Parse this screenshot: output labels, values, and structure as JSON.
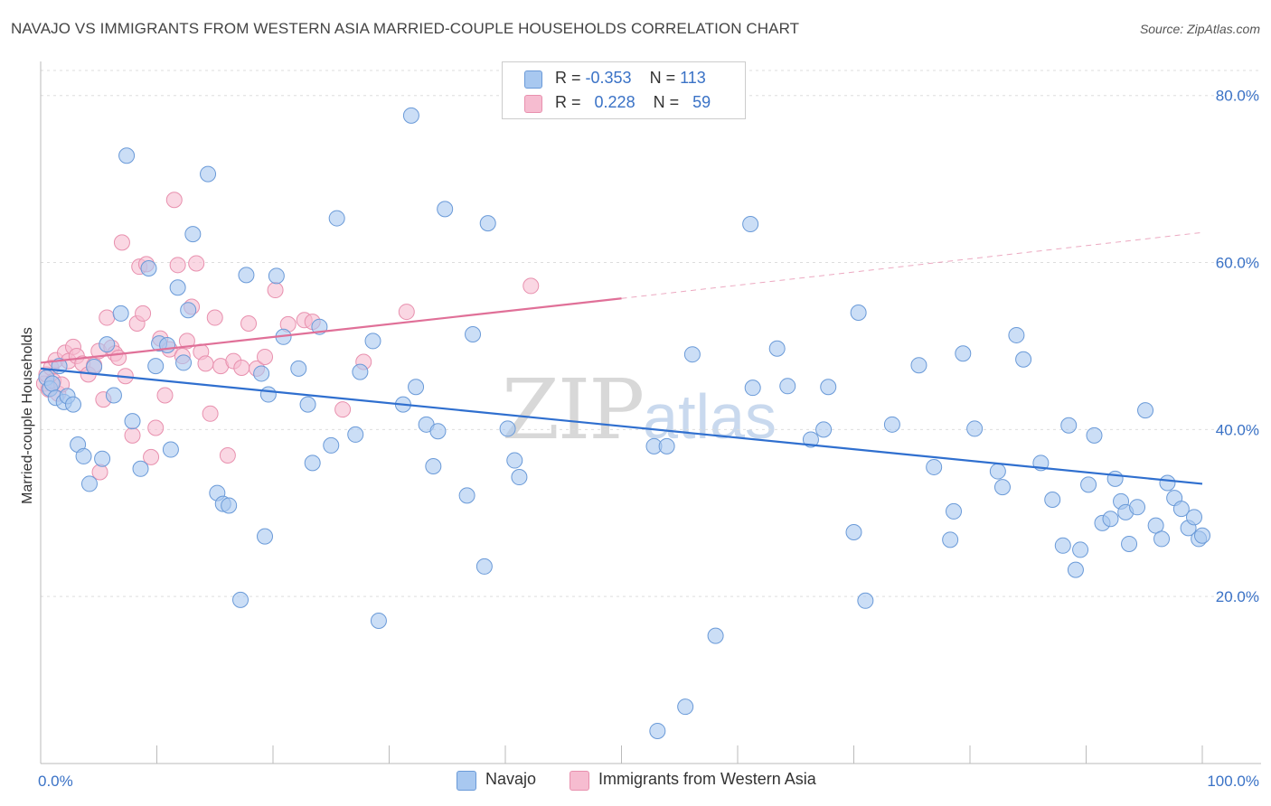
{
  "title": "NAVAJO VS IMMIGRANTS FROM WESTERN ASIA MARRIED-COUPLE HOUSEHOLDS CORRELATION CHART",
  "source": "Source: ZipAtlas.com",
  "watermark": {
    "zip": "ZIP",
    "atlas": "atlas"
  },
  "colors": {
    "navajo_fill": "#a8c8f0",
    "navajo_stroke": "#6a9ad8",
    "navajo_line": "#2f6fcf",
    "imm_fill": "#f6bcd0",
    "imm_stroke": "#e890ae",
    "imm_line": "#e07098",
    "grid": "#dddddd",
    "tick_label": "#3a72c6"
  },
  "legend": {
    "navajo": {
      "r_label": "R = ",
      "r_value": "-0.353",
      "n_label": "N = ",
      "n_value": "113"
    },
    "imm": {
      "r_label": "R = ",
      "r_value": "0.228",
      "n_label": "N = ",
      "n_value": "59"
    }
  },
  "bottom_legend": {
    "navajo": "Navajo",
    "imm": "Immigrants from Western Asia"
  },
  "chart_data": {
    "type": "scatter",
    "title": "NAVAJO VS IMMIGRANTS FROM WESTERN ASIA MARRIED-COUPLE HOUSEHOLDS CORRELATION CHART",
    "xlabel": "",
    "ylabel": "Married-couple Households",
    "xlim": [
      0,
      100
    ],
    "ylim": [
      0,
      83
    ],
    "x_tick_labels": [
      "0.0%",
      "100.0%"
    ],
    "y_ticks": [
      20,
      40,
      60,
      80
    ],
    "y_tick_labels": [
      "20.0%",
      "40.0%",
      "60.0%",
      "80.0%"
    ],
    "grid": true,
    "legend_position": "top-center",
    "series": [
      {
        "name": "Navajo",
        "trend": {
          "x": [
            0,
            100
          ],
          "y": [
            47.3,
            33.5
          ],
          "dashed_from": null
        },
        "points": [
          [
            0.5,
            46.2
          ],
          [
            0.8,
            44.9
          ],
          [
            1.0,
            45.5
          ],
          [
            1.3,
            43.8
          ],
          [
            1.6,
            47.6
          ],
          [
            2.0,
            43.3
          ],
          [
            2.3,
            44.0
          ],
          [
            2.8,
            43.0
          ],
          [
            3.2,
            38.2
          ],
          [
            3.7,
            36.8
          ],
          [
            4.2,
            33.5
          ],
          [
            4.6,
            47.5
          ],
          [
            5.3,
            36.5
          ],
          [
            5.7,
            50.2
          ],
          [
            6.3,
            44.1
          ],
          [
            6.9,
            53.9
          ],
          [
            7.4,
            72.8
          ],
          [
            7.9,
            41.0
          ],
          [
            8.6,
            35.3
          ],
          [
            9.3,
            59.3
          ],
          [
            9.9,
            47.6
          ],
          [
            10.2,
            50.3
          ],
          [
            10.9,
            50.1
          ],
          [
            11.2,
            37.6
          ],
          [
            11.8,
            57.0
          ],
          [
            12.3,
            48.0
          ],
          [
            12.7,
            54.3
          ],
          [
            13.1,
            63.4
          ],
          [
            14.4,
            70.6
          ],
          [
            15.2,
            32.4
          ],
          [
            15.7,
            31.1
          ],
          [
            16.2,
            30.9
          ],
          [
            17.2,
            19.6
          ],
          [
            17.7,
            58.5
          ],
          [
            19.0,
            46.7
          ],
          [
            19.3,
            27.2
          ],
          [
            19.6,
            44.2
          ],
          [
            20.3,
            58.4
          ],
          [
            20.9,
            51.1
          ],
          [
            22.2,
            47.3
          ],
          [
            23.0,
            43.0
          ],
          [
            23.4,
            36.0
          ],
          [
            24.0,
            52.3
          ],
          [
            25.0,
            38.1
          ],
          [
            25.5,
            65.3
          ],
          [
            27.1,
            39.4
          ],
          [
            27.5,
            46.9
          ],
          [
            28.6,
            50.6
          ],
          [
            29.1,
            17.1
          ],
          [
            31.2,
            43.0
          ],
          [
            31.9,
            77.6
          ],
          [
            32.3,
            45.1
          ],
          [
            33.2,
            40.6
          ],
          [
            33.8,
            35.6
          ],
          [
            34.2,
            39.8
          ],
          [
            34.8,
            66.4
          ],
          [
            36.7,
            32.1
          ],
          [
            37.2,
            51.4
          ],
          [
            38.2,
            23.6
          ],
          [
            38.5,
            64.7
          ],
          [
            40.2,
            40.1
          ],
          [
            40.8,
            36.3
          ],
          [
            41.2,
            34.3
          ],
          [
            53.1,
            3.9
          ],
          [
            55.5,
            6.8
          ],
          [
            52.8,
            38.0
          ],
          [
            53.9,
            38.0
          ],
          [
            56.1,
            49.0
          ],
          [
            58.1,
            15.3
          ],
          [
            61.1,
            64.6
          ],
          [
            61.3,
            45.0
          ],
          [
            63.4,
            49.7
          ],
          [
            64.3,
            45.2
          ],
          [
            66.3,
            38.8
          ],
          [
            67.4,
            40.0
          ],
          [
            67.8,
            45.1
          ],
          [
            70.0,
            27.7
          ],
          [
            70.4,
            54.0
          ],
          [
            71.0,
            19.5
          ],
          [
            73.3,
            40.6
          ],
          [
            75.6,
            47.7
          ],
          [
            76.9,
            35.5
          ],
          [
            78.3,
            26.8
          ],
          [
            78.6,
            30.2
          ],
          [
            79.4,
            49.1
          ],
          [
            80.4,
            40.1
          ],
          [
            82.4,
            35.0
          ],
          [
            82.8,
            33.1
          ],
          [
            84.0,
            51.3
          ],
          [
            84.6,
            48.4
          ],
          [
            86.1,
            36.0
          ],
          [
            87.1,
            31.6
          ],
          [
            88.0,
            26.1
          ],
          [
            88.5,
            40.5
          ],
          [
            89.1,
            23.2
          ],
          [
            89.5,
            25.6
          ],
          [
            90.2,
            33.4
          ],
          [
            90.7,
            39.3
          ],
          [
            91.4,
            28.8
          ],
          [
            92.1,
            29.3
          ],
          [
            92.5,
            34.1
          ],
          [
            93.0,
            31.4
          ],
          [
            93.4,
            30.1
          ],
          [
            93.7,
            26.3
          ],
          [
            94.4,
            30.7
          ],
          [
            95.1,
            42.3
          ],
          [
            96.0,
            28.5
          ],
          [
            96.5,
            26.9
          ],
          [
            97.0,
            33.6
          ],
          [
            97.6,
            31.8
          ],
          [
            98.2,
            30.5
          ],
          [
            98.8,
            28.2
          ],
          [
            99.3,
            29.5
          ],
          [
            99.7,
            26.9
          ],
          [
            100.0,
            27.3
          ]
        ]
      },
      {
        "name": "Immigrants from Western Asia",
        "trend": {
          "x": [
            0,
            50,
            100
          ],
          "y": [
            48.0,
            55.7,
            63.6
          ],
          "dashed_from": 50
        },
        "points": [
          [
            0.3,
            45.5
          ],
          [
            0.5,
            46.6
          ],
          [
            0.7,
            44.8
          ],
          [
            0.9,
            47.4
          ],
          [
            1.1,
            45.8
          ],
          [
            1.3,
            48.3
          ],
          [
            1.5,
            44.3
          ],
          [
            1.8,
            45.4
          ],
          [
            2.1,
            49.2
          ],
          [
            2.4,
            48.2
          ],
          [
            2.8,
            49.9
          ],
          [
            3.1,
            48.8
          ],
          [
            3.6,
            47.9
          ],
          [
            4.1,
            46.6
          ],
          [
            4.6,
            47.7
          ],
          [
            5.0,
            49.4
          ],
          [
            5.1,
            34.9
          ],
          [
            5.4,
            43.6
          ],
          [
            5.7,
            53.4
          ],
          [
            6.1,
            49.8
          ],
          [
            6.4,
            49.1
          ],
          [
            6.7,
            48.6
          ],
          [
            7.0,
            62.4
          ],
          [
            7.3,
            46.4
          ],
          [
            7.9,
            39.3
          ],
          [
            8.3,
            52.7
          ],
          [
            8.5,
            59.5
          ],
          [
            8.8,
            53.9
          ],
          [
            9.1,
            59.8
          ],
          [
            9.5,
            36.7
          ],
          [
            9.9,
            40.2
          ],
          [
            10.3,
            50.9
          ],
          [
            10.7,
            44.1
          ],
          [
            11.1,
            49.6
          ],
          [
            11.5,
            67.5
          ],
          [
            11.8,
            59.7
          ],
          [
            12.2,
            48.8
          ],
          [
            12.6,
            50.6
          ],
          [
            13.0,
            54.7
          ],
          [
            13.4,
            59.9
          ],
          [
            13.8,
            49.3
          ],
          [
            14.2,
            47.9
          ],
          [
            14.6,
            41.9
          ],
          [
            15.0,
            53.4
          ],
          [
            15.5,
            47.6
          ],
          [
            16.1,
            36.9
          ],
          [
            16.6,
            48.2
          ],
          [
            17.3,
            47.4
          ],
          [
            17.9,
            52.7
          ],
          [
            18.6,
            47.3
          ],
          [
            19.3,
            48.7
          ],
          [
            20.2,
            56.7
          ],
          [
            21.3,
            52.6
          ],
          [
            22.7,
            53.1
          ],
          [
            23.4,
            52.9
          ],
          [
            26.0,
            42.4
          ],
          [
            27.8,
            48.1
          ],
          [
            31.5,
            54.1
          ],
          [
            42.2,
            57.2
          ]
        ]
      }
    ]
  }
}
